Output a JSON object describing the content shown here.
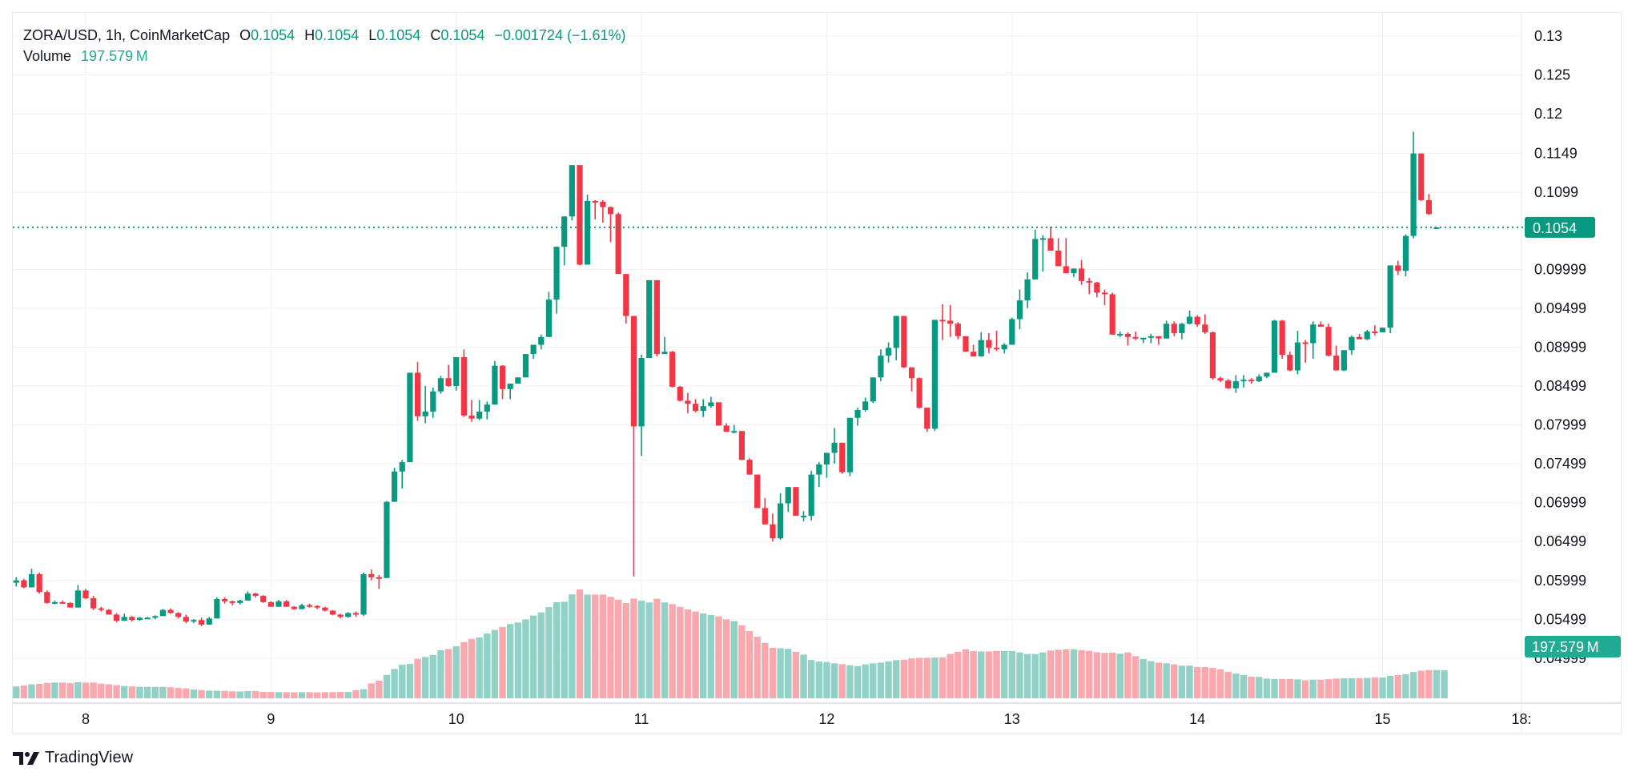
{
  "header": {
    "symbol": "ZORA/USD, 1h, CoinMarketCap",
    "open_label": "O",
    "open": "0.1054",
    "high_label": "H",
    "high": "0.1054",
    "low_label": "L",
    "low": "0.1054",
    "close_label": "C",
    "close": "0.1054",
    "change": "−0.001724 (−1.61%)",
    "volume_label": "Volume",
    "volume": "197.579 M"
  },
  "price_badge": "0.1054",
  "volume_badge": "197.579 M",
  "branding": {
    "logo_icon": "tradingview-logo-icon",
    "name": "TradingView"
  },
  "colors": {
    "up": "#089981",
    "down": "#f23645",
    "vol_up": "#92d2c6",
    "vol_down": "#f9a8ae",
    "grid": "#f0f1f3",
    "badge_price": "#089981",
    "badge_volume": "#22ab94"
  },
  "chart_data": {
    "type": "candlestick",
    "title": "ZORA/USD, 1h, CoinMarketCap",
    "interval": "1h",
    "xlabel": "",
    "ylabel": "",
    "ylim": [
      0.0466,
      0.1305
    ],
    "y_ticks": [
      "0.13",
      "0.125",
      "0.12",
      "0.1149",
      "0.1099",
      "0.09999",
      "0.09499",
      "0.08999",
      "0.08499",
      "0.07999",
      "0.07499",
      "0.06999",
      "0.06499",
      "0.05999",
      "0.05499",
      "0.04999"
    ],
    "y_tick_values": [
      0.13,
      0.125,
      0.12,
      0.1149,
      0.1099,
      0.09999,
      0.09499,
      0.08999,
      0.08499,
      0.07999,
      0.07499,
      0.06999,
      0.06499,
      0.05999,
      0.05499,
      0.04999
    ],
    "x_ticks": [
      "8",
      "9",
      "10",
      "11",
      "12",
      "13",
      "14",
      "15",
      "18:"
    ],
    "x_tick_hours": [
      0,
      24,
      48,
      72,
      96,
      120,
      144,
      168,
      186
    ],
    "grid": true,
    "last_price": 0.1054,
    "last_volume": "197.579M",
    "start_hour_offset": -9,
    "candles": [
      [
        0.0597,
        0.0604,
        0.0592,
        0.06
      ],
      [
        0.06,
        0.0602,
        0.059,
        0.0591
      ],
      [
        0.0591,
        0.0615,
        0.0591,
        0.0608
      ],
      [
        0.0608,
        0.061,
        0.0583,
        0.0585
      ],
      [
        0.0585,
        0.0587,
        0.057,
        0.0571
      ],
      [
        0.0571,
        0.0574,
        0.0569,
        0.0572
      ],
      [
        0.0572,
        0.0574,
        0.057,
        0.0571
      ],
      [
        0.0571,
        0.0572,
        0.0565,
        0.0565
      ],
      [
        0.0565,
        0.0594,
        0.0565,
        0.0587
      ],
      [
        0.0587,
        0.0589,
        0.0576,
        0.0577
      ],
      [
        0.0577,
        0.058,
        0.0562,
        0.0564
      ],
      [
        0.0564,
        0.0566,
        0.056,
        0.0562
      ],
      [
        0.0562,
        0.0563,
        0.0556,
        0.0556
      ],
      [
        0.0556,
        0.0558,
        0.0546,
        0.0548
      ],
      [
        0.0548,
        0.0557,
        0.0548,
        0.0553
      ],
      [
        0.0553,
        0.0554,
        0.0547,
        0.0549
      ],
      [
        0.0549,
        0.0553,
        0.0548,
        0.0552
      ],
      [
        0.0552,
        0.0553,
        0.055,
        0.0552
      ],
      [
        0.0552,
        0.0555,
        0.055,
        0.0554
      ],
      [
        0.0554,
        0.0563,
        0.0554,
        0.0562
      ],
      [
        0.0562,
        0.0564,
        0.0557,
        0.0558
      ],
      [
        0.0558,
        0.0559,
        0.0551,
        0.0553
      ],
      [
        0.0553,
        0.0556,
        0.0545,
        0.0547
      ],
      [
        0.0547,
        0.055,
        0.0545,
        0.0549
      ],
      [
        0.0549,
        0.0552,
        0.0541,
        0.0543
      ],
      [
        0.0543,
        0.0553,
        0.0543,
        0.0551
      ],
      [
        0.0551,
        0.0578,
        0.0551,
        0.0576
      ],
      [
        0.0576,
        0.0578,
        0.057,
        0.0573
      ],
      [
        0.0573,
        0.0574,
        0.0568,
        0.0571
      ],
      [
        0.0571,
        0.0575,
        0.0569,
        0.0574
      ],
      [
        0.0574,
        0.0586,
        0.0574,
        0.0583
      ],
      [
        0.0583,
        0.0584,
        0.0578,
        0.058
      ],
      [
        0.058,
        0.0581,
        0.0571,
        0.0572
      ],
      [
        0.0572,
        0.0573,
        0.0566,
        0.0566
      ],
      [
        0.0566,
        0.0575,
        0.0566,
        0.0573
      ],
      [
        0.0573,
        0.0575,
        0.0566,
        0.0566
      ],
      [
        0.0566,
        0.0567,
        0.0562,
        0.0563
      ],
      [
        0.0563,
        0.057,
        0.0563,
        0.0568
      ],
      [
        0.0568,
        0.057,
        0.0565,
        0.0567
      ],
      [
        0.0567,
        0.0568,
        0.0563,
        0.0565
      ],
      [
        0.0565,
        0.0566,
        0.056,
        0.0561
      ],
      [
        0.0561,
        0.0562,
        0.0555,
        0.0556
      ],
      [
        0.0556,
        0.0557,
        0.0551,
        0.0553
      ],
      [
        0.0553,
        0.0559,
        0.0552,
        0.0558
      ],
      [
        0.0558,
        0.056,
        0.0553,
        0.0556
      ],
      [
        0.0556,
        0.061,
        0.0554,
        0.0608
      ],
      [
        0.0608,
        0.0614,
        0.06,
        0.0604
      ],
      [
        0.0604,
        0.0607,
        0.0589,
        0.0603
      ],
      [
        0.0603,
        0.0702,
        0.0603,
        0.0701
      ],
      [
        0.0701,
        0.0745,
        0.0701,
        0.074
      ],
      [
        0.074,
        0.0755,
        0.0718,
        0.0752
      ],
      [
        0.0752,
        0.0825,
        0.0752,
        0.0867
      ],
      [
        0.0867,
        0.0881,
        0.0805,
        0.0811
      ],
      [
        0.0811,
        0.085,
        0.0802,
        0.0817
      ],
      [
        0.0817,
        0.0848,
        0.0809,
        0.0843
      ],
      [
        0.0843,
        0.0863,
        0.084,
        0.086
      ],
      [
        0.086,
        0.0877,
        0.0849,
        0.085
      ],
      [
        0.085,
        0.0885,
        0.0844,
        0.0887
      ],
      [
        0.0887,
        0.0897,
        0.081,
        0.0812
      ],
      [
        0.0812,
        0.0832,
        0.0804,
        0.0808
      ],
      [
        0.0808,
        0.0832,
        0.0806,
        0.0817
      ],
      [
        0.0817,
        0.083,
        0.0807,
        0.0826
      ],
      [
        0.0826,
        0.0882,
        0.0826,
        0.0876
      ],
      [
        0.0876,
        0.0877,
        0.0833,
        0.0846
      ],
      [
        0.0846,
        0.0851,
        0.0833,
        0.0853
      ],
      [
        0.0853,
        0.0855,
        0.0853,
        0.0861
      ],
      [
        0.0861,
        0.0869,
        0.0861,
        0.0891
      ],
      [
        0.0891,
        0.0903,
        0.0885,
        0.0903
      ],
      [
        0.0903,
        0.0916,
        0.0897,
        0.0913
      ],
      [
        0.0913,
        0.0971,
        0.0913,
        0.0961
      ],
      [
        0.0961,
        0.0997,
        0.0943,
        0.1029
      ],
      [
        0.1029,
        0.1043,
        0.1005,
        0.1068
      ],
      [
        0.1068,
        0.1121,
        0.1063,
        0.1134
      ],
      [
        0.1134,
        0.1134,
        0.1005,
        0.1006
      ],
      [
        0.1006,
        0.1096,
        0.1006,
        0.1088
      ],
      [
        0.1088,
        0.1089,
        0.1064,
        0.1087
      ],
      [
        0.1087,
        0.1089,
        0.106,
        0.108
      ],
      [
        0.108,
        0.1081,
        0.1035,
        0.1071
      ],
      [
        0.1071,
        0.1073,
        0.0997,
        0.0994
      ],
      [
        0.0994,
        0.0994,
        0.093,
        0.094
      ],
      [
        0.094,
        0.094,
        0.0605,
        0.0798
      ],
      [
        0.0798,
        0.089,
        0.076,
        0.0886
      ],
      [
        0.0886,
        0.0986,
        0.0886,
        0.0986
      ],
      [
        0.0986,
        0.0986,
        0.0888,
        0.0891
      ],
      [
        0.0891,
        0.0913,
        0.0892,
        0.0894
      ],
      [
        0.0894,
        0.0895,
        0.0848,
        0.0849
      ],
      [
        0.0849,
        0.085,
        0.083,
        0.0831
      ],
      [
        0.0831,
        0.0841,
        0.0815,
        0.0827
      ],
      [
        0.0827,
        0.0833,
        0.0816,
        0.0818
      ],
      [
        0.0818,
        0.0833,
        0.081,
        0.0824
      ],
      [
        0.0824,
        0.0836,
        0.0822,
        0.0829
      ],
      [
        0.0829,
        0.0829,
        0.0799,
        0.0799
      ],
      [
        0.0799,
        0.0802,
        0.0792,
        0.0791
      ],
      [
        0.0791,
        0.08,
        0.0789,
        0.0792
      ],
      [
        0.0792,
        0.0792,
        0.0755,
        0.0755
      ],
      [
        0.0755,
        0.0757,
        0.0736,
        0.0736
      ],
      [
        0.0736,
        0.0736,
        0.0693,
        0.0693
      ],
      [
        0.0693,
        0.0706,
        0.0673,
        0.0672
      ],
      [
        0.0672,
        0.0686,
        0.065,
        0.0654
      ],
      [
        0.0654,
        0.0712,
        0.0652,
        0.0699
      ],
      [
        0.0699,
        0.0715,
        0.0688,
        0.072
      ],
      [
        0.072,
        0.072,
        0.0685,
        0.0683
      ],
      [
        0.0683,
        0.0689,
        0.0676,
        0.0683
      ],
      [
        0.0683,
        0.0741,
        0.0677,
        0.0736
      ],
      [
        0.0736,
        0.0752,
        0.072,
        0.0749
      ],
      [
        0.0749,
        0.0762,
        0.0732,
        0.0764
      ],
      [
        0.0764,
        0.0796,
        0.075,
        0.0777
      ],
      [
        0.0777,
        0.0777,
        0.0737,
        0.0739
      ],
      [
        0.0739,
        0.0808,
        0.0734,
        0.0809
      ],
      [
        0.0809,
        0.0822,
        0.0799,
        0.0819
      ],
      [
        0.0819,
        0.0835,
        0.0817,
        0.083
      ],
      [
        0.083,
        0.0857,
        0.0828,
        0.0861
      ],
      [
        0.0861,
        0.0897,
        0.0856,
        0.0889
      ],
      [
        0.0889,
        0.0906,
        0.088,
        0.0899
      ],
      [
        0.0899,
        0.0934,
        0.0883,
        0.094
      ],
      [
        0.094,
        0.094,
        0.0873,
        0.0874
      ],
      [
        0.0874,
        0.087,
        0.0843,
        0.086
      ],
      [
        0.086,
        0.0861,
        0.0821,
        0.0822
      ],
      [
        0.0822,
        0.0822,
        0.0791,
        0.0795
      ],
      [
        0.0795,
        0.0932,
        0.0792,
        0.0935
      ],
      [
        0.0935,
        0.0955,
        0.0909,
        0.0934
      ],
      [
        0.0934,
        0.0954,
        0.0913,
        0.093
      ],
      [
        0.093,
        0.0932,
        0.091,
        0.0914
      ],
      [
        0.0914,
        0.0914,
        0.0894,
        0.0894
      ],
      [
        0.0894,
        0.0903,
        0.0889,
        0.0888
      ],
      [
        0.0888,
        0.0919,
        0.0888,
        0.0909
      ],
      [
        0.0909,
        0.0918,
        0.0892,
        0.0899
      ],
      [
        0.0899,
        0.0921,
        0.0895,
        0.0897
      ],
      [
        0.0897,
        0.0905,
        0.0892,
        0.0903
      ],
      [
        0.0903,
        0.0938,
        0.0903,
        0.0936
      ],
      [
        0.0936,
        0.0974,
        0.0923,
        0.096
      ],
      [
        0.096,
        0.0996,
        0.095,
        0.0987
      ],
      [
        0.0987,
        0.1051,
        0.1035,
        0.1039
      ],
      [
        0.1039,
        0.1044,
        0.0997,
        0.104
      ],
      [
        0.104,
        0.1055,
        0.1024,
        0.1024
      ],
      [
        0.1024,
        0.104,
        0.1013,
        0.1004
      ],
      [
        0.1004,
        0.104,
        0.1005,
        0.0995
      ],
      [
        0.0995,
        0.1,
        0.099,
        0.1001
      ],
      [
        0.1001,
        0.1012,
        0.098,
        0.0985
      ],
      [
        0.0985,
        0.0989,
        0.0968,
        0.0983
      ],
      [
        0.0983,
        0.0984,
        0.0964,
        0.097
      ],
      [
        0.097,
        0.0974,
        0.0954,
        0.0968
      ],
      [
        0.0968,
        0.097,
        0.0916,
        0.0916
      ],
      [
        0.0916,
        0.092,
        0.0913,
        0.0917
      ],
      [
        0.0917,
        0.0919,
        0.0902,
        0.0913
      ],
      [
        0.0913,
        0.092,
        0.0909,
        0.0911
      ],
      [
        0.0911,
        0.0912,
        0.0905,
        0.0912
      ],
      [
        0.0912,
        0.0917,
        0.0905,
        0.0914
      ],
      [
        0.0914,
        0.0914,
        0.0903,
        0.0911
      ],
      [
        0.0911,
        0.0934,
        0.0911,
        0.093
      ],
      [
        0.093,
        0.0933,
        0.0914,
        0.0918
      ],
      [
        0.0918,
        0.0931,
        0.091,
        0.093
      ],
      [
        0.093,
        0.0947,
        0.0929,
        0.0939
      ],
      [
        0.0939,
        0.0941,
        0.0926,
        0.0929
      ],
      [
        0.0929,
        0.0942,
        0.0917,
        0.0919
      ],
      [
        0.0919,
        0.092,
        0.0858,
        0.086
      ],
      [
        0.086,
        0.0862,
        0.0855,
        0.0857
      ],
      [
        0.0857,
        0.0859,
        0.0846,
        0.0847
      ],
      [
        0.0847,
        0.0864,
        0.0841,
        0.0856
      ],
      [
        0.0856,
        0.0864,
        0.0848,
        0.0858
      ],
      [
        0.0858,
        0.086,
        0.0853,
        0.0856
      ],
      [
        0.0856,
        0.0865,
        0.0855,
        0.0862
      ],
      [
        0.0862,
        0.0867,
        0.086,
        0.0867
      ],
      [
        0.0867,
        0.0935,
        0.0867,
        0.0934
      ],
      [
        0.0934,
        0.0935,
        0.0885,
        0.089
      ],
      [
        0.089,
        0.0894,
        0.0869,
        0.087
      ],
      [
        0.087,
        0.0921,
        0.0865,
        0.0906
      ],
      [
        0.0906,
        0.0909,
        0.088,
        0.0905
      ],
      [
        0.0905,
        0.0933,
        0.0885,
        0.0929
      ],
      [
        0.0929,
        0.0933,
        0.0926,
        0.0926
      ],
      [
        0.0926,
        0.093,
        0.0888,
        0.0889
      ],
      [
        0.0889,
        0.0902,
        0.087,
        0.087
      ],
      [
        0.087,
        0.0895,
        0.0869,
        0.0896
      ],
      [
        0.0896,
        0.0915,
        0.089,
        0.0913
      ],
      [
        0.0913,
        0.0917,
        0.091,
        0.091
      ],
      [
        0.091,
        0.0922,
        0.0909,
        0.092
      ],
      [
        0.092,
        0.0928,
        0.0915,
        0.0919
      ],
      [
        0.0919,
        0.0922,
        0.0919,
        0.0925
      ],
      [
        0.0925,
        0.1005,
        0.0918,
        0.1005
      ],
      [
        0.1005,
        0.1011,
        0.0993,
        0.0998
      ],
      [
        0.0998,
        0.1045,
        0.0991,
        0.1043
      ],
      [
        0.1043,
        0.1177,
        0.104,
        0.1149
      ],
      [
        0.1149,
        0.1149,
        0.1088,
        0.1089
      ],
      [
        0.1089,
        0.1097,
        0.107,
        0.1071
      ],
      [
        0.1054,
        0.1054,
        0.1054,
        0.1054
      ]
    ],
    "volume": [
      0.56,
      0.6,
      0.66,
      0.68,
      0.72,
      0.74,
      0.74,
      0.72,
      0.76,
      0.74,
      0.74,
      0.69,
      0.66,
      0.62,
      0.58,
      0.56,
      0.54,
      0.54,
      0.54,
      0.54,
      0.52,
      0.49,
      0.47,
      0.42,
      0.39,
      0.36,
      0.36,
      0.35,
      0.33,
      0.32,
      0.34,
      0.34,
      0.3,
      0.3,
      0.29,
      0.29,
      0.28,
      0.29,
      0.29,
      0.28,
      0.29,
      0.29,
      0.3,
      0.3,
      0.38,
      0.43,
      0.7,
      0.83,
      1.1,
      1.38,
      1.58,
      1.62,
      1.86,
      1.95,
      2.04,
      2.27,
      2.32,
      2.45,
      2.65,
      2.8,
      2.87,
      3.05,
      3.22,
      3.36,
      3.5,
      3.57,
      3.72,
      3.9,
      4.05,
      4.3,
      4.53,
      4.55,
      4.9,
      5.13,
      4.89,
      4.89,
      4.89,
      4.78,
      4.65,
      4.49,
      4.7,
      4.6,
      4.52,
      4.69,
      4.52,
      4.44,
      4.31,
      4.19,
      4.09,
      4.0,
      3.93,
      3.86,
      3.72,
      3.64,
      3.44,
      3.17,
      2.9,
      2.61,
      2.38,
      2.36,
      2.33,
      2.19,
      2.06,
      1.81,
      1.73,
      1.71,
      1.65,
      1.61,
      1.56,
      1.52,
      1.6,
      1.65,
      1.68,
      1.74,
      1.8,
      1.82,
      1.88,
      1.91,
      1.91,
      1.92,
      1.93,
      2.09,
      2.19,
      2.31,
      2.23,
      2.21,
      2.21,
      2.23,
      2.23,
      2.23,
      2.16,
      2.09,
      2.09,
      2.16,
      2.25,
      2.29,
      2.31,
      2.31,
      2.27,
      2.24,
      2.17,
      2.14,
      2.15,
      2.1,
      2.16,
      1.99,
      1.85,
      1.75,
      1.68,
      1.65,
      1.6,
      1.54,
      1.54,
      1.47,
      1.47,
      1.43,
      1.37,
      1.25,
      1.17,
      1.1,
      1.02,
      1.01,
      0.93,
      0.91,
      0.91,
      0.91,
      0.89,
      0.85,
      0.88,
      0.88,
      0.9,
      0.93,
      0.94,
      0.95,
      0.95,
      0.96,
      0.98,
      0.98,
      1.06,
      1.1,
      1.13,
      1.24,
      1.3,
      1.33,
      1.33,
      1.33
    ],
    "volume_colors": "per candle direction (smoothed volume)"
  }
}
